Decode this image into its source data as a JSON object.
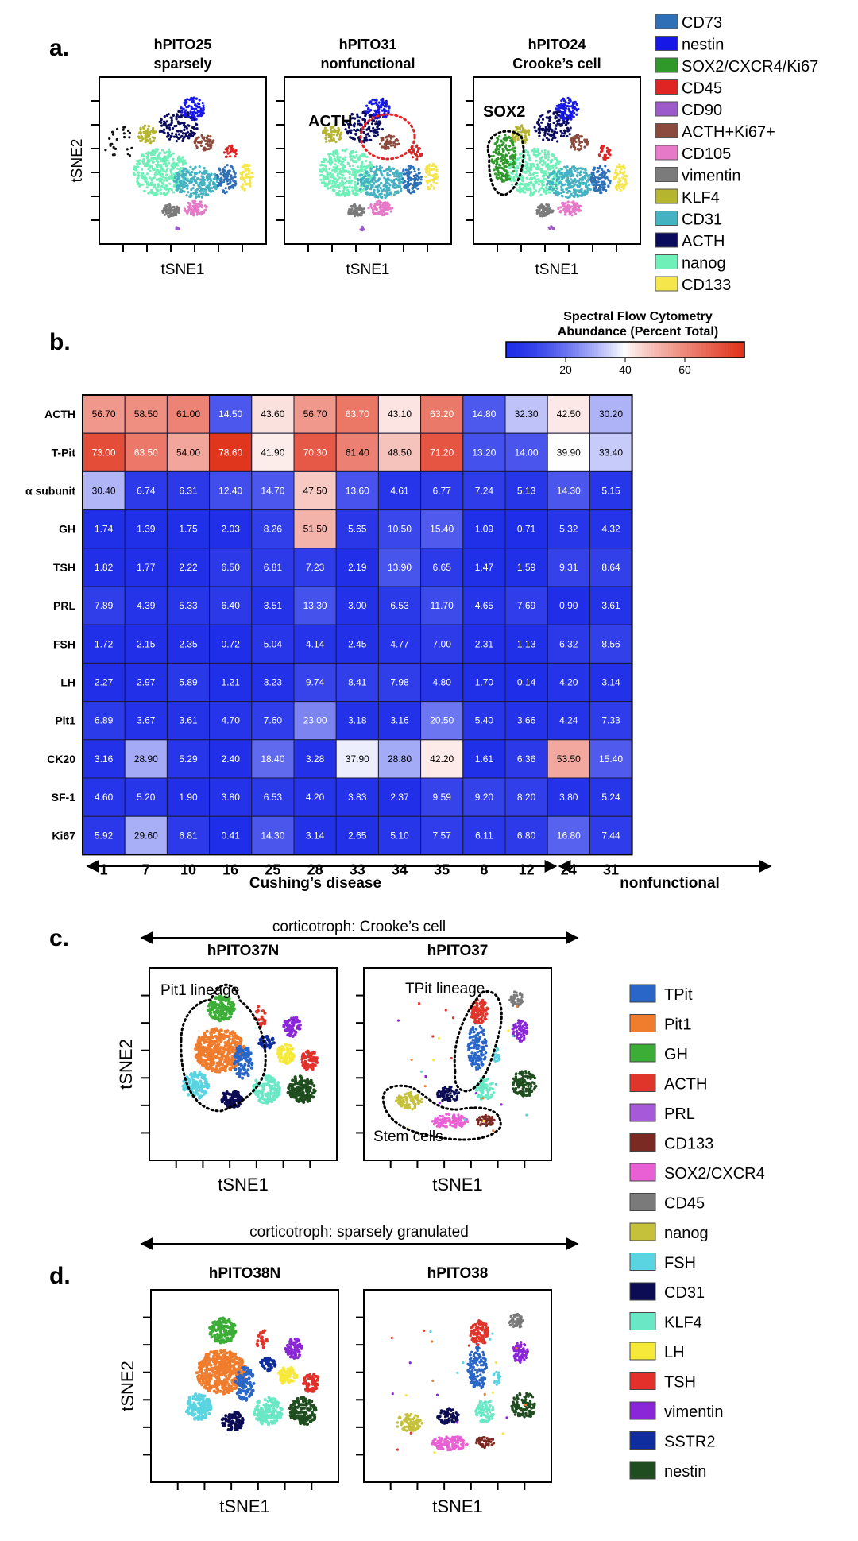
{
  "colors": {
    "cd73": "#2f6fb5",
    "nestin_a": "#1717e8",
    "sox2_cxcr4_ki67": "#2f9a2a",
    "cd45_a": "#e02424",
    "cd90": "#9b59c9",
    "acth_ki67": "#8b4a3c",
    "cd105": "#e77ac8",
    "vimentin_a": "#7b7b7b",
    "klf4_a": "#b5b530",
    "cd31_a": "#45b2c2",
    "acth_a": "#0b0b5e",
    "nanog_a": "#6ff0b8",
    "cd133_a": "#f5e64c",
    "tpit": "#2a66c7",
    "pit1": "#f07d2e",
    "gh": "#3cae37",
    "acth_c": "#e0352b",
    "prl": "#a659d8",
    "cd133_c": "#7a2a22",
    "sox2_cxcr4": "#e960d4",
    "cd45_c": "#7a7a7a",
    "nanog_c": "#c6c13a",
    "fsh": "#5ad4e0",
    "cd31_c": "#0c0c55",
    "klf4_c": "#6ae8c6",
    "lh": "#f7e93a",
    "tsh": "#e4302a",
    "vimentin_c": "#8a26d8",
    "sstr2": "#0f2d9e",
    "nestin_c": "#1f4d1f"
  },
  "panel_a": {
    "letter": "a.",
    "plots": [
      {
        "title1": "hPITO25",
        "title2": "sparsely",
        "annotation": ""
      },
      {
        "title1": "hPITO31",
        "title2": "nonfunctional",
        "annotation": "ACTH"
      },
      {
        "title1": "hPITO24",
        "title2": "Crooke’s cell",
        "annotation": "SOX2"
      }
    ],
    "ylabel": "tSNE2",
    "xlabel": "tSNE1",
    "legend": [
      {
        "label": "CD73",
        "color": "#2f6fb5"
      },
      {
        "label": "nestin",
        "color": "#1717e8"
      },
      {
        "label": "SOX2/CXCR4/Ki67",
        "color": "#2f9a2a"
      },
      {
        "label": "CD45",
        "color": "#e02424"
      },
      {
        "label": "CD90",
        "color": "#9b59c9"
      },
      {
        "label": "ACTH+Ki67+",
        "color": "#8b4a3c"
      },
      {
        "label": "CD105",
        "color": "#e77ac8"
      },
      {
        "label": "vimentin",
        "color": "#7b7b7b"
      },
      {
        "label": "KLF4",
        "color": "#b5b530"
      },
      {
        "label": "CD31",
        "color": "#45b2c2"
      },
      {
        "label": "ACTH",
        "color": "#0b0b5e"
      },
      {
        "label": "nanog",
        "color": "#6ff0b8"
      },
      {
        "label": "CD133",
        "color": "#f5e64c"
      }
    ]
  },
  "panel_b": {
    "letter": "b.",
    "colorbar_title1": "Spectral Flow Cytometry",
    "colorbar_title2": "Abundance (Percent Total)",
    "colorbar_ticks": [
      "20",
      "40",
      "60"
    ],
    "group1_label": "Cushing’s disease",
    "group2_label": "nonfunctional"
  },
  "chart_data": {
    "type": "heatmap",
    "title": "Spectral Flow Cytometry Abundance (Percent Total)",
    "columns": [
      "1",
      "7",
      "10",
      "16",
      "25",
      "28",
      "33",
      "34",
      "35",
      "8",
      "12",
      "24",
      "31"
    ],
    "rows": [
      "ACTH",
      "T-Pit",
      "α subunit",
      "GH",
      "TSH",
      "PRL",
      "FSH",
      "LH",
      "Pit1",
      "CK20",
      "SF-1",
      "Ki67"
    ],
    "values": [
      [
        "56.70",
        "58.50",
        "61.00",
        "14.50",
        "43.60",
        "56.70",
        "63.70",
        "43.10",
        "63.20",
        "14.80",
        "32.30",
        "42.50",
        "30.20"
      ],
      [
        "73.00",
        "63.50",
        "54.00",
        "78.60",
        "41.90",
        "70.30",
        "61.40",
        "48.50",
        "71.20",
        "13.20",
        "14.00",
        "39.90",
        "33.40"
      ],
      [
        "30.40",
        "6.74",
        "6.31",
        "12.40",
        "14.70",
        "47.50",
        "13.60",
        "4.61",
        "6.77",
        "7.24",
        "5.13",
        "14.30",
        "5.15"
      ],
      [
        "1.74",
        "1.39",
        "1.75",
        "2.03",
        "8.26",
        "51.50",
        "5.65",
        "10.50",
        "15.40",
        "1.09",
        "0.71",
        "5.32",
        "4.32"
      ],
      [
        "1.82",
        "1.77",
        "2.22",
        "6.50",
        "6.81",
        "7.23",
        "2.19",
        "13.90",
        "6.65",
        "1.47",
        "1.59",
        "9.31",
        "8.64"
      ],
      [
        "7.89",
        "4.39",
        "5.33",
        "6.40",
        "3.51",
        "13.30",
        "3.00",
        "6.53",
        "11.70",
        "4.65",
        "7.69",
        "0.90",
        "3.61"
      ],
      [
        "1.72",
        "2.15",
        "2.35",
        "0.72",
        "5.04",
        "4.14",
        "2.45",
        "4.77",
        "7.00",
        "2.31",
        "1.13",
        "6.32",
        "8.56"
      ],
      [
        "2.27",
        "2.97",
        "5.89",
        "1.21",
        "3.23",
        "9.74",
        "8.41",
        "7.98",
        "4.80",
        "1.70",
        "0.14",
        "4.20",
        "3.14"
      ],
      [
        "6.89",
        "3.67",
        "3.61",
        "4.70",
        "7.60",
        "23.00",
        "3.18",
        "3.16",
        "20.50",
        "5.40",
        "3.66",
        "4.24",
        "7.33"
      ],
      [
        "3.16",
        "28.90",
        "5.29",
        "2.40",
        "18.40",
        "3.28",
        "37.90",
        "28.80",
        "42.20",
        "1.61",
        "6.36",
        "53.50",
        "15.40"
      ],
      [
        "4.60",
        "5.20",
        "1.90",
        "3.80",
        "6.53",
        "4.20",
        "3.83",
        "2.37",
        "9.59",
        "9.20",
        "8.20",
        "3.80",
        "5.24"
      ],
      [
        "5.92",
        "29.60",
        "6.81",
        "0.41",
        "14.30",
        "3.14",
        "2.65",
        "5.10",
        "7.57",
        "6.11",
        "6.80",
        "16.80",
        "7.44"
      ]
    ],
    "color_scale": {
      "low": "#1f2ee8",
      "mid": "#ffffff",
      "high": "#e03018",
      "min": 0,
      "mid_value": 40,
      "max": 80
    }
  },
  "panel_c": {
    "letter": "c.",
    "arrow_label": "corticotroph:  Crooke’s cell",
    "plots": [
      {
        "title": "hPITO37N",
        "annotation": "Pit1 lineage"
      },
      {
        "title": "hPITO37",
        "annotation": "TPit lineage",
        "annotation2": "Stem cells"
      }
    ],
    "ylabel": "tSNE2",
    "xlabel": "tSNE1"
  },
  "panel_d": {
    "letter": "d.",
    "arrow_label": "corticotroph:  sparsely granulated",
    "plots": [
      {
        "title": "hPITO38N"
      },
      {
        "title": "hPITO38"
      }
    ],
    "ylabel": "tSNE2",
    "xlabel": "tSNE1"
  },
  "legend_cd": [
    {
      "label": "TPit",
      "color": "#2a66c7"
    },
    {
      "label": "Pit1",
      "color": "#f07d2e"
    },
    {
      "label": "GH",
      "color": "#3cae37"
    },
    {
      "label": "ACTH",
      "color": "#e0352b"
    },
    {
      "label": "PRL",
      "color": "#a659d8"
    },
    {
      "label": "CD133",
      "color": "#7a2a22"
    },
    {
      "label": "SOX2/CXCR4",
      "color": "#e960d4"
    },
    {
      "label": "CD45",
      "color": "#7a7a7a"
    },
    {
      "label": "nanog",
      "color": "#c6c13a"
    },
    {
      "label": "FSH",
      "color": "#5ad4e0"
    },
    {
      "label": "CD31",
      "color": "#0c0c55"
    },
    {
      "label": "KLF4",
      "color": "#6ae8c6"
    },
    {
      "label": "LH",
      "color": "#f7e93a"
    },
    {
      "label": "TSH",
      "color": "#e4302a"
    },
    {
      "label": "vimentin",
      "color": "#8a26d8"
    },
    {
      "label": "SSTR2",
      "color": "#0f2d9e"
    },
    {
      "label": "nestin",
      "color": "#1f4d1f"
    }
  ]
}
